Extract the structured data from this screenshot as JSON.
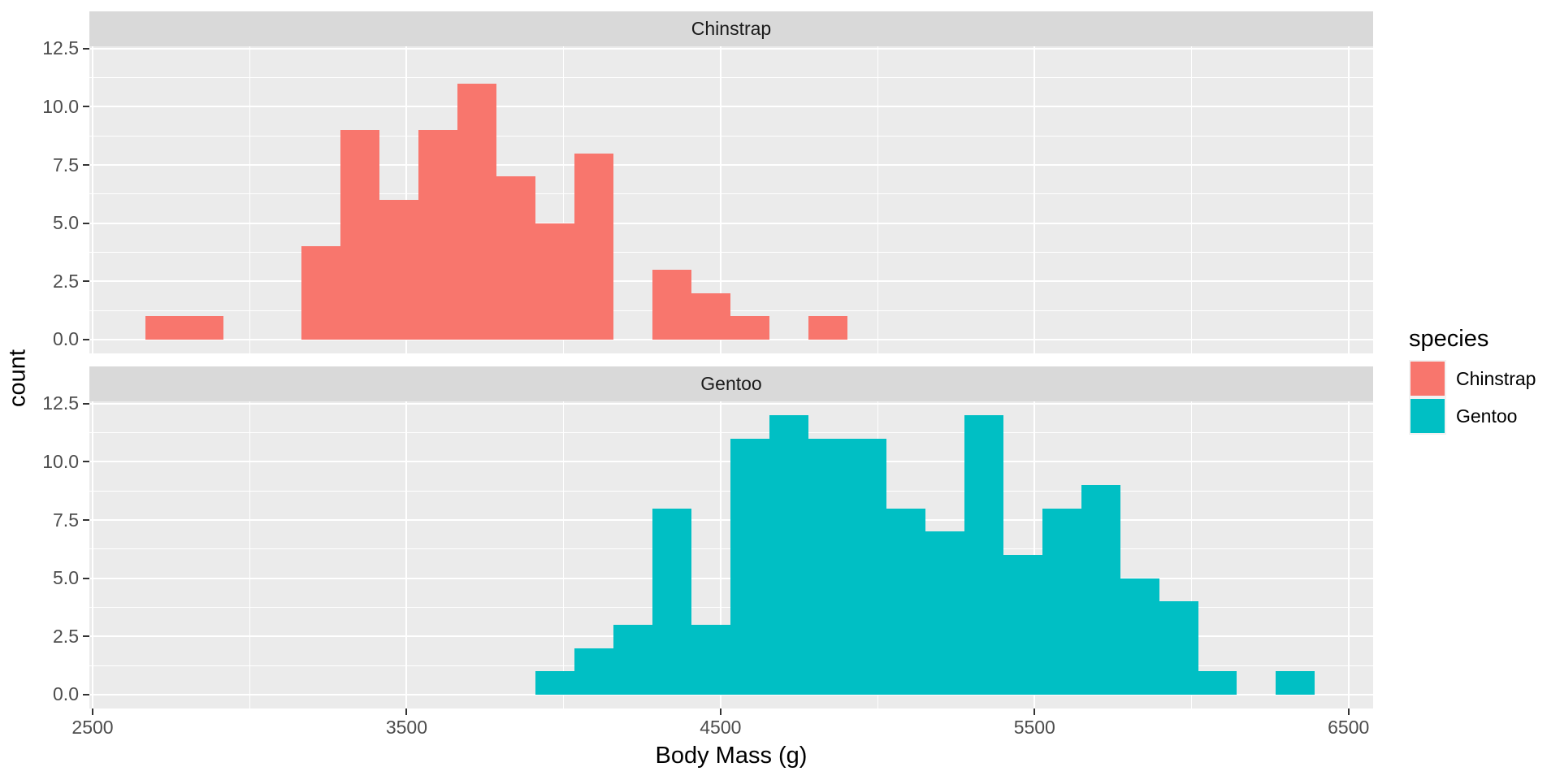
{
  "chart_data": {
    "type": "bar",
    "subtype": "faceted-histogram",
    "title": "",
    "xlabel": "Body Mass (g)",
    "ylabel": "count",
    "x_domain": [
      2489.6,
      6578.4
    ],
    "y_domain": [
      -0.6,
      12.6
    ],
    "x_ticks": [
      2500,
      3500,
      4500,
      5500,
      6500
    ],
    "x_tick_labels": [
      "2500",
      "3500",
      "4500",
      "5500",
      "6500"
    ],
    "x_minor_ticks": [
      3000,
      4000,
      5000,
      6000
    ],
    "y_ticks": [
      0,
      2.5,
      5,
      7.5,
      10,
      12.5
    ],
    "y_tick_labels": [
      "0.0",
      "2.5",
      "5.0",
      "7.5",
      "10.0",
      "12.5"
    ],
    "y_minor_ticks": [
      1.25,
      3.75,
      6.25,
      8.75,
      11.25
    ],
    "binwidth": 124.138,
    "grid": true,
    "facets": [
      {
        "label": "Chinstrap",
        "fill": "#F8766D",
        "bin_start": 2669.0,
        "counts": [
          1,
          1,
          0,
          0,
          4,
          9,
          6,
          9,
          11,
          7,
          5,
          8,
          0,
          3,
          2,
          1,
          0,
          1
        ]
      },
      {
        "label": "Gentoo",
        "fill": "#00BFC4",
        "bin_start": 3910.4,
        "counts": [
          1,
          2,
          3,
          8,
          3,
          11,
          12,
          11,
          11,
          8,
          7,
          12,
          6,
          8,
          9,
          5,
          4,
          1,
          0,
          1
        ]
      }
    ]
  },
  "legend": {
    "title": "species",
    "entries": [
      {
        "label": "Chinstrap",
        "color": "#F8766D"
      },
      {
        "label": "Gentoo",
        "color": "#00BFC4"
      }
    ]
  },
  "colors": {
    "panel_bg": "#EBEBEB",
    "strip_bg": "#D9D9D9",
    "grid": "#FFFFFF",
    "axis_text": "#4D4D4D",
    "strip_text": "#1A1A1A",
    "tick_mark": "#333333",
    "legend_key_bg": "#F2F2F2"
  }
}
